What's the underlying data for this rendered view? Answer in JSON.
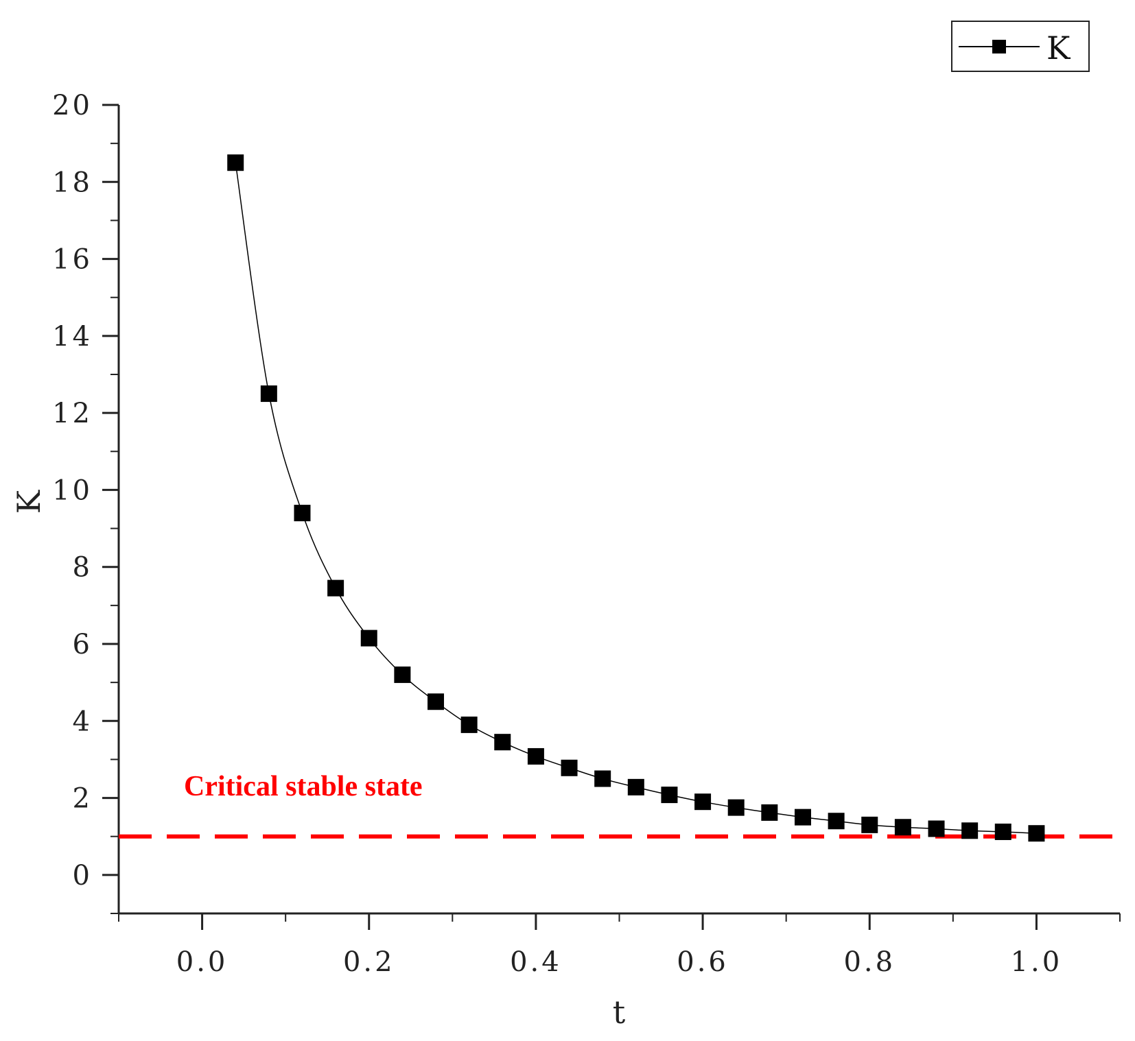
{
  "chart_data": {
    "type": "line",
    "xlabel": "t",
    "ylabel": "K",
    "xlim": [
      -0.1,
      1.1
    ],
    "ylim": [
      -1,
      20
    ],
    "x_ticks": [
      "0.0",
      "0.2",
      "0.4",
      "0.6",
      "0.8",
      "1.0"
    ],
    "x_tick_values": [
      0,
      0.2,
      0.4,
      0.6,
      0.8,
      1.0
    ],
    "y_ticks": [
      "0",
      "2",
      "4",
      "6",
      "8",
      "10",
      "12",
      "14",
      "16",
      "18",
      "20"
    ],
    "y_tick_values": [
      0,
      2,
      4,
      6,
      8,
      10,
      12,
      14,
      16,
      18,
      20
    ],
    "grid": false,
    "legend_position": "top-right",
    "series": [
      {
        "name": "K",
        "marker": "square",
        "color": "#000000",
        "x": [
          0.04,
          0.08,
          0.12,
          0.16,
          0.2,
          0.24,
          0.28,
          0.32,
          0.36,
          0.4,
          0.44,
          0.48,
          0.52,
          0.56,
          0.6,
          0.64,
          0.68,
          0.72,
          0.76,
          0.8,
          0.84,
          0.88,
          0.92,
          0.96,
          1.0
        ],
        "y": [
          18.5,
          12.5,
          9.4,
          7.45,
          6.15,
          5.2,
          4.5,
          3.9,
          3.45,
          3.08,
          2.78,
          2.5,
          2.28,
          2.08,
          1.9,
          1.75,
          1.62,
          1.5,
          1.4,
          1.3,
          1.24,
          1.2,
          1.15,
          1.12,
          1.08
        ]
      }
    ],
    "reference_line": {
      "y": 1.0,
      "color": "#ff0000",
      "style": "dashed",
      "label": "Critical stable state"
    }
  }
}
